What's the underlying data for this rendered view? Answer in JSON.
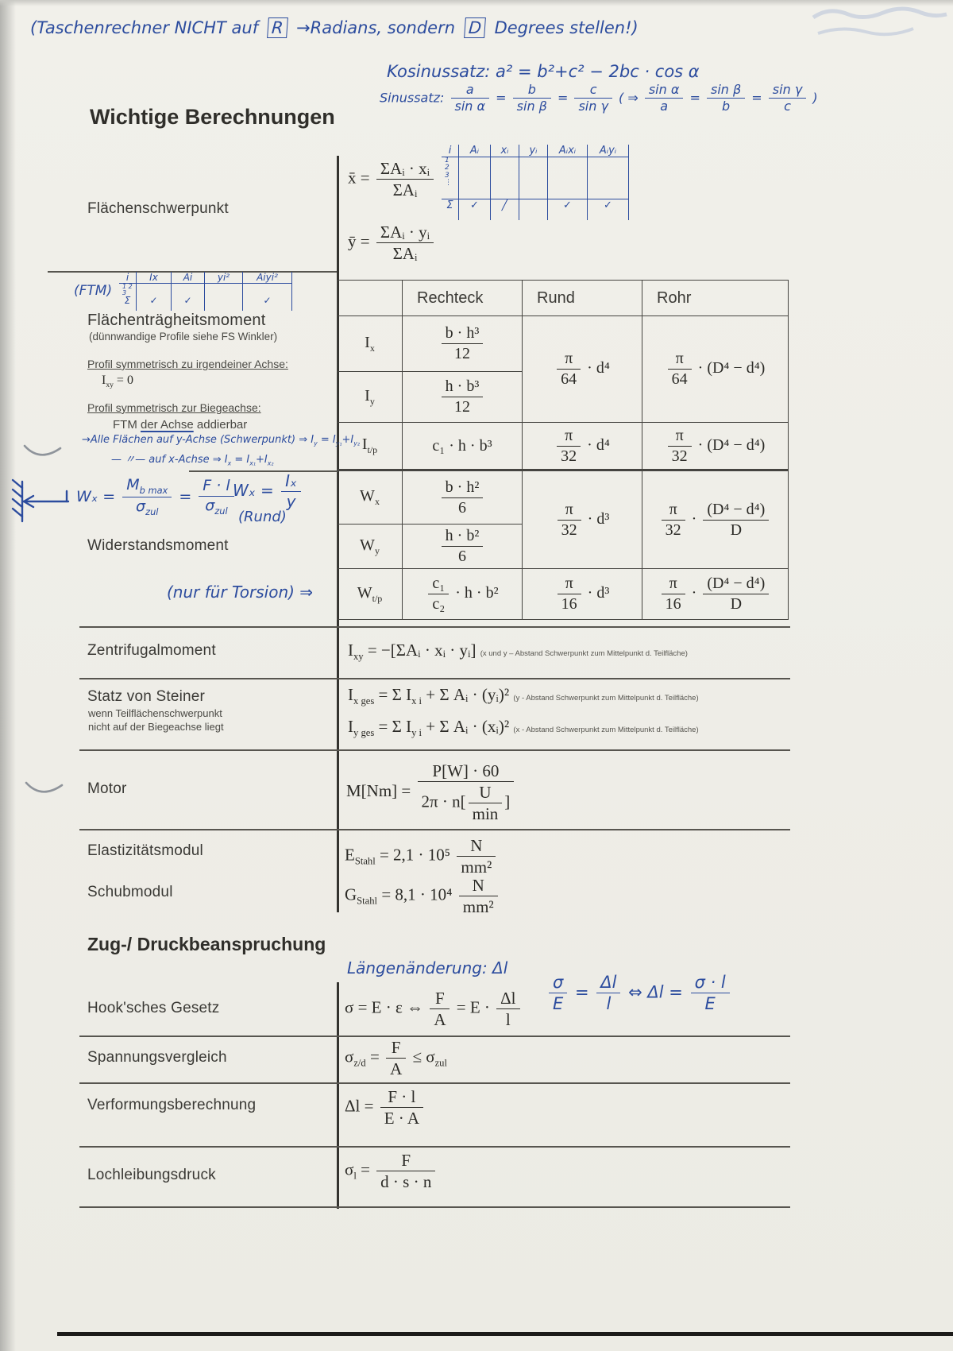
{
  "title": "Wichtige Berechnungen",
  "zug_heading": "Zug-/ Druckbeanspruchung",
  "labels": {
    "schwerpunkt": "Flächenschwerpunkt",
    "ftm_heading": "Flächenträgheitsmoment",
    "ftm_sub": "(dünnwandige Profile siehe FS Winkler)",
    "ftm_rule1": "Profil symmetrisch zu irgendeiner Achse:",
    "ftm_rule2": "Profil symmetrisch zur Biegeachse:",
    "ftm_rule2b_pre": "FTM ",
    "ftm_rule2b_ul": "der Achse",
    "ftm_rule2b_post": " addierbar",
    "widerstandsmoment": "Widerstandsmoment",
    "zentrifugal": "Zentrifugalmoment",
    "steiner": "Statz von Steiner",
    "steiner_sub1": "wenn Teilflächenschwerpunkt",
    "steiner_sub2": "nicht auf der Biegeachse liegt",
    "motor": "Motor",
    "emodul": "Elastizitätsmodul",
    "gmodul": "Schubmodul",
    "hook": "Hook'sches Gesetz",
    "spannung": "Spannungsvergleich",
    "verformung": "Verformungsberechnung",
    "lochleibung": "Lochleibungsdruck"
  },
  "formulas": {
    "xbar": [
      {
        "t": "txt",
        "v": "x̄ = "
      },
      {
        "t": "frac",
        "n": "ΣAᵢ · xᵢ",
        "d": "ΣAᵢ"
      }
    ],
    "ybar": [
      {
        "t": "txt",
        "v": "ȳ = "
      },
      {
        "t": "frac",
        "n": "ΣAᵢ · yᵢ",
        "d": "ΣAᵢ"
      }
    ],
    "ftm_ixy_zero": [
      {
        "t": "sub",
        "b": "I",
        "s": "xy"
      },
      {
        "t": "txt",
        "v": " = 0"
      }
    ],
    "zentrifugal": [
      {
        "t": "sub",
        "b": "I",
        "s": "xy"
      },
      {
        "t": "txt",
        "v": " = −[ΣAᵢ · xᵢ · yᵢ]"
      }
    ],
    "zentrifugal_note": "(x und y – Abstand Schwerpunkt zum Mittelpunkt d. Teilfläche)",
    "steiner1": [
      {
        "t": "sub",
        "b": "I",
        "s": "x ges"
      },
      {
        "t": "txt",
        "v": " = Σ "
      },
      {
        "t": "sub",
        "b": "I",
        "s": "x i"
      },
      {
        "t": "txt",
        "v": " + Σ Aᵢ · (yᵢ)²"
      }
    ],
    "steiner1_note": "(y - Abstand Schwerpunkt zum Mittelpunkt d. Teilfläche)",
    "steiner2": [
      {
        "t": "sub",
        "b": "I",
        "s": "y ges"
      },
      {
        "t": "txt",
        "v": " = Σ "
      },
      {
        "t": "sub",
        "b": "I",
        "s": "y i"
      },
      {
        "t": "txt",
        "v": " + Σ Aᵢ · (xᵢ)²"
      }
    ],
    "steiner2_note": "(x - Abstand Schwerpunkt zum Mittelpunkt d. Teilfläche)",
    "motor": [
      {
        "t": "txt",
        "v": "M[Nm] = "
      },
      {
        "t": "frac",
        "n": "P[W] · 60",
        "d": [
          "2π · n[",
          {
            "t": "frac",
            "n": "U",
            "d": "min"
          },
          "]"
        ]
      }
    ],
    "emodul": [
      {
        "t": "sub",
        "b": "E",
        "s": "Stahl"
      },
      {
        "t": "txt",
        "v": " = 2,1 · 10⁵ "
      },
      {
        "t": "frac",
        "n": "N",
        "d": "mm²"
      }
    ],
    "gmodul": [
      {
        "t": "sub",
        "b": "G",
        "s": "Stahl"
      },
      {
        "t": "txt",
        "v": " = 8,1 · 10⁴ "
      },
      {
        "t": "frac",
        "n": "N",
        "d": "mm²"
      }
    ],
    "hook": [
      {
        "t": "txt",
        "v": "σ = E · ε ⇔ "
      },
      {
        "t": "frac",
        "n": "F",
        "d": "A"
      },
      {
        "t": "txt",
        "v": " = E · "
      },
      {
        "t": "frac",
        "n": "Δl",
        "d": "l"
      }
    ],
    "spannung": [
      {
        "t": "sub",
        "b": "σ",
        "s": "z/d"
      },
      {
        "t": "txt",
        "v": " = "
      },
      {
        "t": "frac",
        "n": "F",
        "d": "A"
      },
      {
        "t": "txt",
        "v": " ≤ "
      },
      {
        "t": "sub",
        "b": "σ",
        "s": "zul"
      }
    ],
    "verformung": [
      {
        "t": "txt",
        "v": "Δl = "
      },
      {
        "t": "frac",
        "n": "F · l",
        "d": "E · A"
      }
    ],
    "lochleibung": [
      {
        "t": "sub",
        "b": "σ",
        "s": "l"
      },
      {
        "t": "txt",
        "v": " = "
      },
      {
        "t": "frac",
        "n": "F",
        "d": "d · s · n"
      }
    ]
  },
  "moments_table": {
    "headers": [
      "Rechteck",
      "Rund",
      "Rohr"
    ],
    "sym": {
      "ix": [
        {
          "t": "sub",
          "b": "I",
          "s": "x"
        }
      ],
      "iy": [
        {
          "t": "sub",
          "b": "I",
          "s": "y"
        }
      ],
      "itp": [
        {
          "t": "sub",
          "b": "I",
          "s": "t/p"
        }
      ],
      "wx": [
        {
          "t": "sub",
          "b": "W",
          "s": "x"
        }
      ],
      "wy": [
        {
          "t": "sub",
          "b": "W",
          "s": "y"
        }
      ],
      "wtp": [
        {
          "t": "sub",
          "b": "W",
          "s": "t/p"
        }
      ]
    },
    "rect": {
      "ix": [
        {
          "t": "frac",
          "n": "b · h³",
          "d": "12"
        }
      ],
      "iy": [
        {
          "t": "frac",
          "n": "h · b³",
          "d": "12"
        }
      ],
      "itp": [
        {
          "t": "txt",
          "v": "c₁ · h · b³"
        }
      ],
      "wx": [
        {
          "t": "frac",
          "n": "b · h²",
          "d": "6"
        }
      ],
      "wy": [
        {
          "t": "frac",
          "n": "h · b²",
          "d": "6"
        }
      ],
      "wtp": [
        {
          "t": "frac",
          "n": "c₁",
          "d": "c₂"
        },
        {
          "t": "txt",
          "v": " · h · b²"
        }
      ]
    },
    "rund": {
      "i_bend": [
        {
          "t": "frac",
          "n": "π",
          "d": "64"
        },
        {
          "t": "txt",
          "v": " · d⁴"
        }
      ],
      "itp": [
        {
          "t": "frac",
          "n": "π",
          "d": "32"
        },
        {
          "t": "txt",
          "v": " · d⁴"
        }
      ],
      "w_bend": [
        {
          "t": "frac",
          "n": "π",
          "d": "32"
        },
        {
          "t": "txt",
          "v": " · d³"
        }
      ],
      "wtp": [
        {
          "t": "frac",
          "n": "π",
          "d": "16"
        },
        {
          "t": "txt",
          "v": " · d³"
        }
      ]
    },
    "rohr": {
      "i_bend": [
        {
          "t": "frac",
          "n": "π",
          "d": "64"
        },
        {
          "t": "txt",
          "v": " · (D⁴ − d⁴)"
        }
      ],
      "itp": [
        {
          "t": "frac",
          "n": "π",
          "d": "32"
        },
        {
          "t": "txt",
          "v": " · (D⁴ − d⁴)"
        }
      ],
      "w_bend": [
        {
          "t": "frac",
          "n": "π",
          "d": "32"
        },
        {
          "t": "txt",
          "v": " · "
        },
        {
          "t": "frac",
          "n": "(D⁴ − d⁴)",
          "d": "D"
        }
      ],
      "wtp": [
        {
          "t": "frac",
          "n": "π",
          "d": "16"
        },
        {
          "t": "txt",
          "v": " · "
        },
        {
          "t": "frac",
          "n": "(D⁴ − d⁴)",
          "d": "D"
        }
      ]
    }
  },
  "handwriting": {
    "calc_note": {
      "pre": "(Taschenrechner NICHT auf",
      "r_box": "R",
      "mid": "→Radians, sondern",
      "d_box": "D",
      "post": "Degrees stellen!)"
    },
    "kosinussatz": "Kosinussatz: a² = b²+c² − 2bc · cos α",
    "sinussatz": [
      {
        "t": "txt",
        "v": "Sinussatz: "
      },
      {
        "t": "frac",
        "n": "a",
        "d": "sin α"
      },
      {
        "t": "txt",
        "v": " = "
      },
      {
        "t": "frac",
        "n": "b",
        "d": "sin β"
      },
      {
        "t": "txt",
        "v": " = "
      },
      {
        "t": "frac",
        "n": "c",
        "d": "sin γ"
      },
      {
        "t": "txt",
        "v": " ( ⇒ "
      },
      {
        "t": "frac",
        "n": "sin α",
        "d": "a"
      },
      {
        "t": "txt",
        "v": " = "
      },
      {
        "t": "frac",
        "n": "sin β",
        "d": "b"
      },
      {
        "t": "txt",
        "v": " = "
      },
      {
        "t": "frac",
        "n": "sin γ",
        "d": "c"
      },
      {
        "t": "txt",
        "v": " )"
      }
    ],
    "sum_table": {
      "headers": [
        "i",
        "Aᵢ",
        "xᵢ",
        "yᵢ",
        "Aᵢxᵢ",
        "Aᵢyᵢ"
      ],
      "index": "1\n2\n3\n⋮",
      "sigma_row": [
        "Σ",
        "✓",
        "╱",
        "",
        "✓",
        "✓"
      ]
    },
    "ftm_table": {
      "label": "(FTM)",
      "headers": [
        "i",
        "Ix",
        "Ai",
        "yi²",
        "Aiyi²"
      ],
      "index": "1 2 3",
      "sigma_row": [
        "Σ",
        "✓",
        "✓",
        "",
        "✓"
      ]
    },
    "axis_note1": [
      {
        "t": "txt",
        "v": "→Alle Flächen auf y-Achse (Schwerpunkt) ⇒ "
      },
      {
        "t": "sub",
        "b": "I",
        "s": "y"
      },
      {
        "t": "txt",
        "v": " = "
      },
      {
        "t": "sub",
        "b": "I",
        "s": "y₁"
      },
      {
        "t": "txt",
        "v": "+"
      },
      {
        "t": "sub",
        "b": "I",
        "s": "y₂"
      }
    ],
    "axis_note2": [
      {
        "t": "txt",
        "v": "— 〃— auf x-Achse ⇒ "
      },
      {
        "t": "sub",
        "b": "I",
        "s": "x"
      },
      {
        "t": "txt",
        "v": " = "
      },
      {
        "t": "sub",
        "b": "I",
        "s": "x₁"
      },
      {
        "t": "txt",
        "v": "+"
      },
      {
        "t": "sub",
        "b": "I",
        "s": "x₂"
      }
    ],
    "wx1": [
      {
        "t": "txt",
        "v": "Wₓ = "
      },
      {
        "t": "frac",
        "n": [
          {
            "t": "sub",
            "b": "M",
            "s": "b max"
          }
        ],
        "d": [
          {
            "t": "sub",
            "b": "σ",
            "s": "zul"
          }
        ]
      },
      {
        "t": "txt",
        "v": " = "
      },
      {
        "t": "frac",
        "n": "F · l",
        "d": [
          {
            "t": "sub",
            "b": "σ",
            "s": "zul"
          }
        ]
      }
    ],
    "wx2": [
      {
        "t": "txt",
        "v": "Wₓ = "
      },
      {
        "t": "frac",
        "n": "Iₓ",
        "d": "y"
      }
    ],
    "wx2_caption": "(Rund)",
    "torsion_note": "(nur für Torsion) ⇒",
    "laenge_note": "Längenänderung: Δl",
    "sigma_rel": [
      {
        "t": "frac",
        "n": "σ",
        "d": "E"
      },
      {
        "t": "txt",
        "v": " = "
      },
      {
        "t": "frac",
        "n": "Δl",
        "d": "l"
      },
      {
        "t": "txt",
        "v": " ⇔ Δl = "
      },
      {
        "t": "frac",
        "n": "σ · l",
        "d": "E"
      }
    ]
  }
}
